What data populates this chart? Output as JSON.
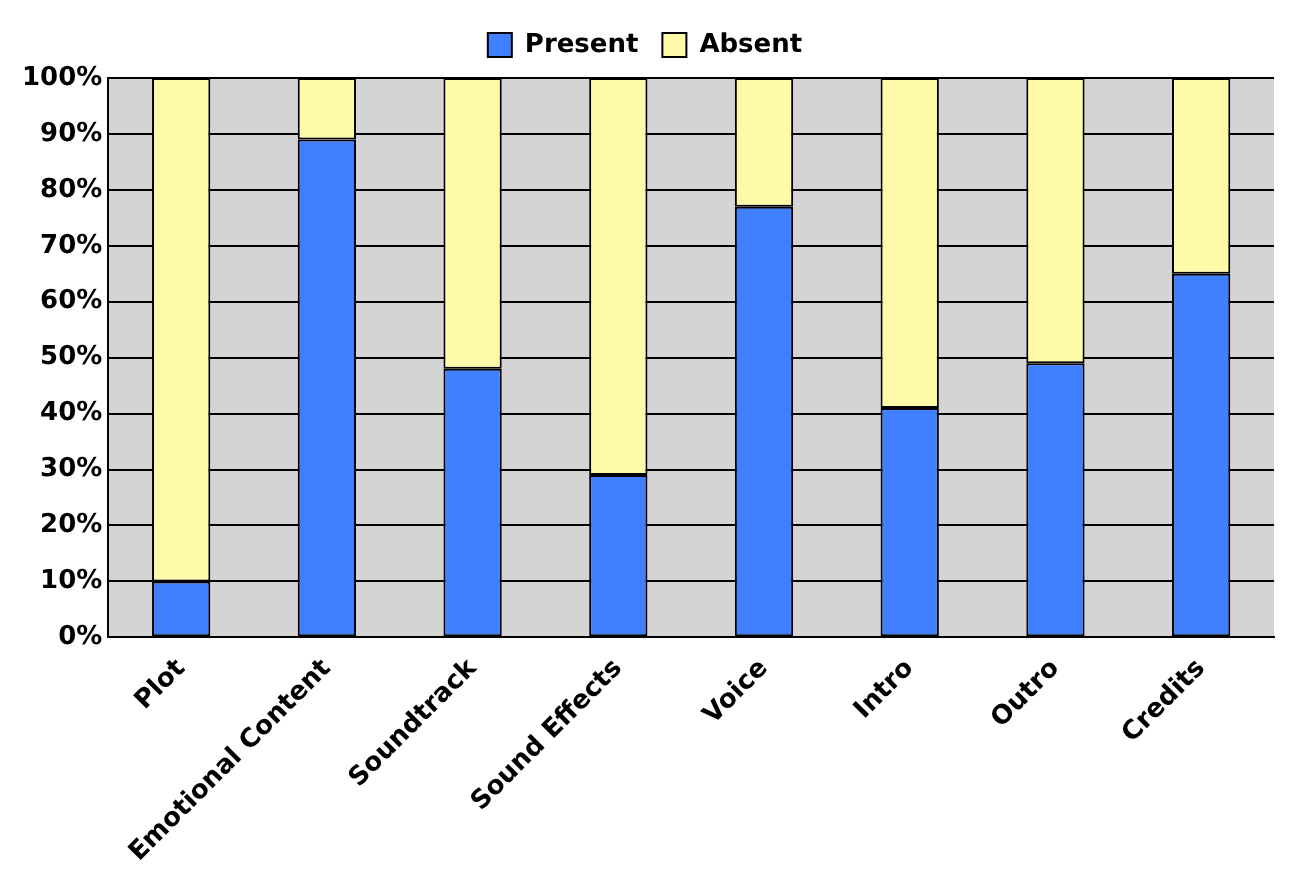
{
  "chart_data": {
    "type": "bar",
    "stacked": true,
    "categories": [
      "Plot",
      "Emotional Content",
      "Soundtrack",
      "Sound Effects",
      "Voice",
      "Intro",
      "Outro",
      "Credits"
    ],
    "series": [
      {
        "name": "Present",
        "color": "#4080ff",
        "values": [
          10,
          89,
          48,
          29,
          77,
          41,
          49,
          65
        ]
      },
      {
        "name": "Absent",
        "color": "#fffaa8",
        "values": [
          90,
          11,
          52,
          71,
          23,
          59,
          51,
          35
        ]
      }
    ],
    "ylim": [
      0,
      100
    ],
    "yticks": [
      {
        "value": 0,
        "label": "0%"
      },
      {
        "value": 10,
        "label": "10%"
      },
      {
        "value": 20,
        "label": "20%"
      },
      {
        "value": 30,
        "label": "30%"
      },
      {
        "value": 40,
        "label": "40%"
      },
      {
        "value": 50,
        "label": "50%"
      },
      {
        "value": 60,
        "label": "60%"
      },
      {
        "value": 70,
        "label": "70%"
      },
      {
        "value": 80,
        "label": "80%"
      },
      {
        "value": 90,
        "label": "90%"
      },
      {
        "value": 100,
        "label": "100%"
      }
    ],
    "grid": "y",
    "legend": "top"
  }
}
